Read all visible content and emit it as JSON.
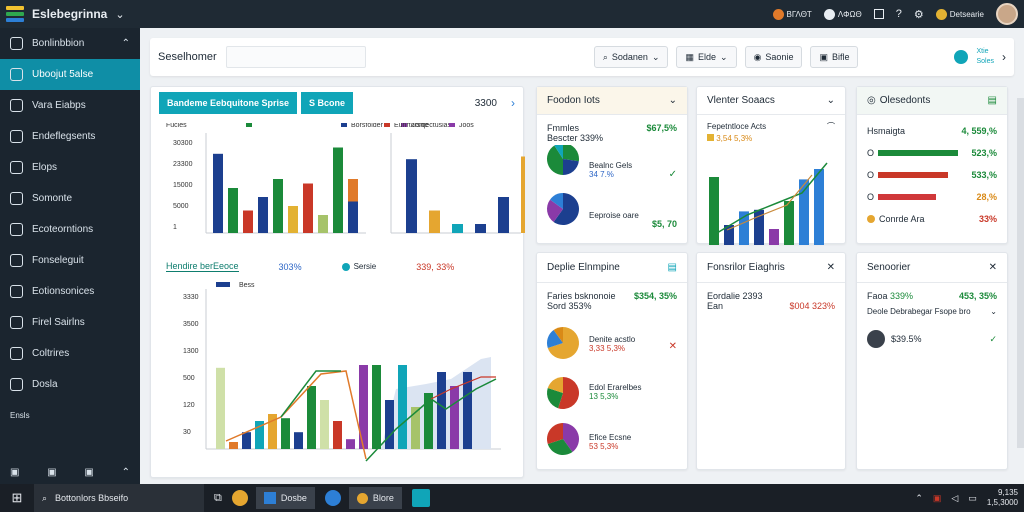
{
  "app": {
    "title": "Eslebegrinna"
  },
  "topbar": {
    "items": [
      "ΒΓΛΘΤ",
      "ΛΦΩΘ",
      "Detsearie"
    ]
  },
  "sidebar": {
    "items": [
      {
        "label": "Bonlinbbion",
        "icon": "circle-icon"
      },
      {
        "label": "Uboojut 5alse",
        "icon": "cube-icon"
      },
      {
        "label": "Vara Eiabps",
        "icon": "square-icon"
      },
      {
        "label": "Endeflegsents",
        "icon": "link-icon"
      },
      {
        "label": "Elops",
        "icon": "calendar-icon"
      },
      {
        "label": "Somonte",
        "icon": "window-icon"
      },
      {
        "label": "Ecoteorntions",
        "icon": "download-icon"
      },
      {
        "label": "Fonseleguit",
        "icon": "refresh-icon"
      },
      {
        "label": "Eotionsonices",
        "icon": "chat-icon"
      },
      {
        "label": "Firel Sairlns",
        "icon": "edit-icon"
      },
      {
        "label": "Coltrires",
        "icon": "recycle-icon"
      },
      {
        "label": "Dosla",
        "icon": "box-icon"
      },
      {
        "label": "Ensls",
        "icon": "none"
      }
    ]
  },
  "toolbar": {
    "title": "Seselhomer",
    "search_placeholder": "",
    "buttons": [
      "Sodanen",
      "Elde",
      "Saonie",
      "Bifle"
    ],
    "status_top": "Xtie",
    "status_bottom": "Soles"
  },
  "main_card": {
    "tab_active": "Bandeme Eebquitone Sprise",
    "tab_second": "S Bcone",
    "value": "3300",
    "chart1": {
      "legend": [
        "Fucles",
        "Borsfolder",
        "Zorqectuslas"
      ],
      "ylabels": [
        "30300",
        "23300",
        "15000",
        "5000",
        "1"
      ]
    },
    "chart2": {
      "legend": [
        "Eunrtorsrie",
        "Joos"
      ]
    },
    "section2": {
      "title": "Hendire berEeoce",
      "v1": "303%",
      "v2": "Sersie",
      "v3": "339, 33%"
    },
    "chart3": {
      "legend": [
        "Bess"
      ],
      "ylabels": [
        "3330",
        "3500",
        "1300",
        "500",
        "120",
        "30"
      ]
    }
  },
  "card_a": {
    "title": "Foodon Iots",
    "r1l": "Fmmles",
    "r1v": "$67,5%",
    "r2l": "Bescter 339%",
    "p1l": "Bealnc Gels",
    "p1v": "34 7.%",
    "p2l": "Eeproise oare",
    "p2v": "$5, 70"
  },
  "card_b": {
    "title": "Vlenter Soaacs",
    "sub": "Fepetntloce Acts",
    "sub2": "3,54 5,3%"
  },
  "card_c": {
    "title": "Olesedonts",
    "rows": [
      {
        "l": "Hsmaigta",
        "v": "4, 559,%"
      },
      {
        "l": "O",
        "v": "523,%"
      },
      {
        "l": "O",
        "v": "533,%"
      },
      {
        "l": "O",
        "v": "28,%"
      },
      {
        "l": "Conrde Ara",
        "v": "33%"
      }
    ]
  },
  "card_d": {
    "title": "Deplie Elnmpine",
    "r1l": "Faries bsknonoie",
    "r1v": "$354, 35%",
    "r2l": "Sord 353%",
    "p1l": "Denite acstlo",
    "p1v": "3,33 5,3%",
    "p2l": "Edol Erarelbes",
    "p2v": "13 5,3%",
    "p3l": "Efice Ecsne",
    "p3v": "53 5,3%"
  },
  "card_e": {
    "title": "Fonsrilor Eiaghris",
    "r1": "Eordalie 2393",
    "r2l": "Ean",
    "r2v": "$004 323%"
  },
  "card_f": {
    "title": "Senoorier",
    "r1l": "Faoa",
    "r1v": "339%",
    "r1r": "453, 35%",
    "r2": "Deole Debrabegar Fsope bro",
    "r3": "$39.5%"
  },
  "taskbar": {
    "search": "Bottonlors Bbseifo",
    "app1": "Dosbe",
    "app2": "Blore",
    "time": "9,135",
    "date": "1,5,3000"
  }
}
